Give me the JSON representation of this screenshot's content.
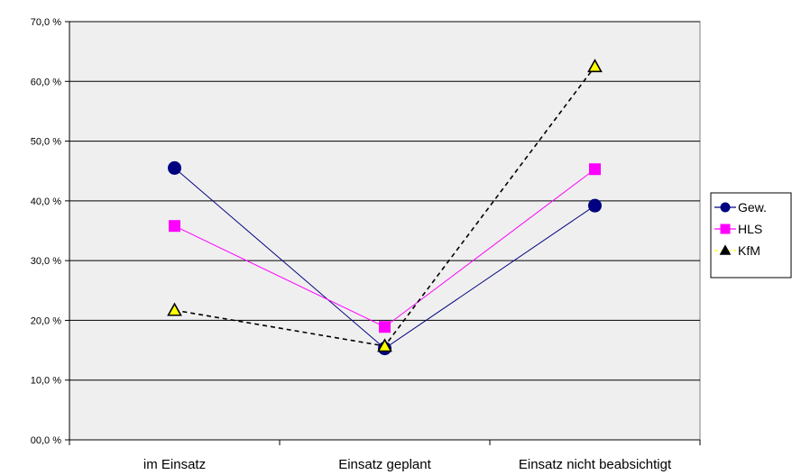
{
  "chart_data": {
    "type": "line",
    "title": "",
    "xlabel": "",
    "ylabel": "",
    "categories": [
      "im Einsatz",
      "Einsatz geplant",
      "Einsatz nicht beabsichtigt"
    ],
    "ylim": [
      0,
      70
    ],
    "yticks": [
      0,
      10,
      20,
      30,
      40,
      50,
      60,
      70
    ],
    "ytick_labels": [
      "00,0 %",
      "10,0 %",
      "20,0 %",
      "30,0 %",
      "40,0 %",
      "50,0 %",
      "60,0 %",
      "70,0 %"
    ],
    "grid": "horizontal",
    "plot_background": "#efefef",
    "legend_position": "right",
    "series": [
      {
        "name": "Gew.",
        "values": [
          45.5,
          15.3,
          39.2
        ],
        "color": "#000080",
        "marker": "circle",
        "marker_color": "#000080",
        "line_style": "solid"
      },
      {
        "name": "HLS",
        "values": [
          35.8,
          18.9,
          45.3
        ],
        "color": "#ff00ff",
        "marker": "square",
        "marker_color": "#ff00ff",
        "line_style": "solid"
      },
      {
        "name": "KfM",
        "values": [
          21.7,
          15.7,
          62.5
        ],
        "color": "#000000",
        "marker": "triangle",
        "marker_color": "#ffff00",
        "line_style": "dashed"
      }
    ]
  }
}
